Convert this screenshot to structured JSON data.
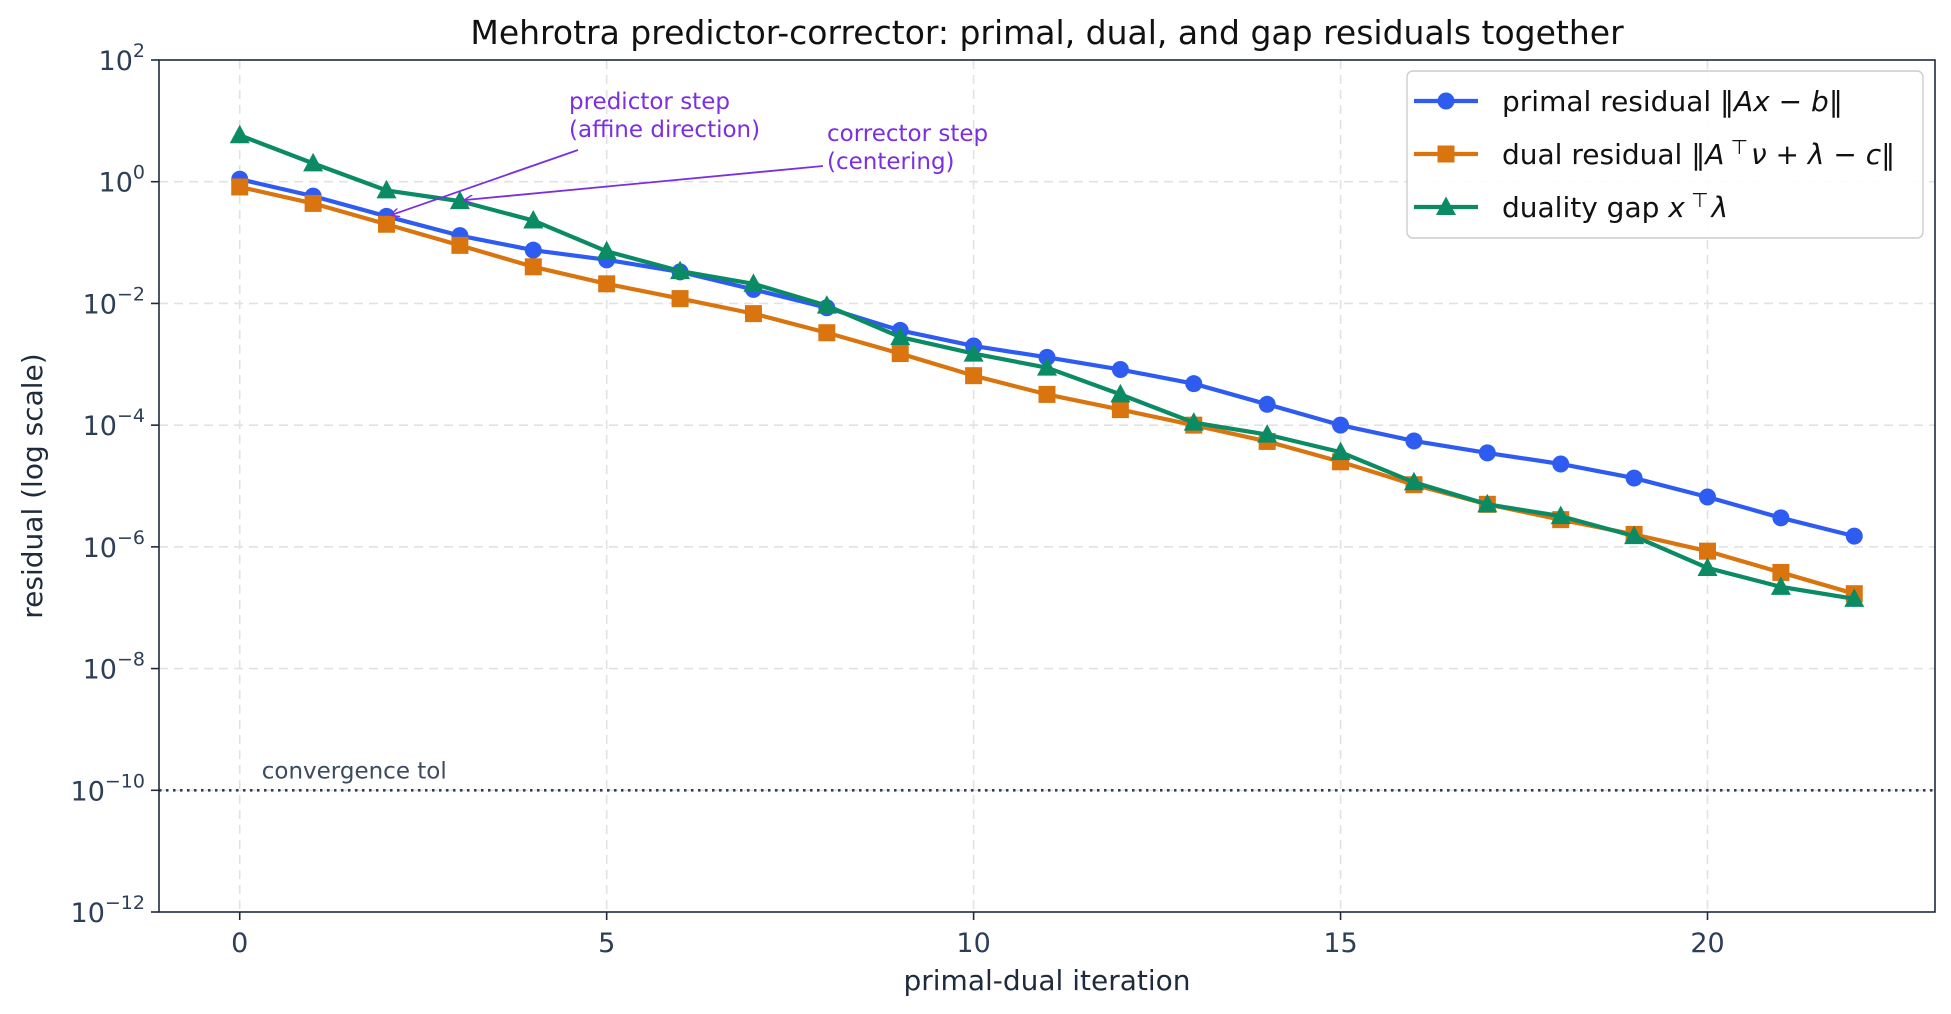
{
  "chart_data": {
    "type": "line",
    "title": "Mehrotra predictor-corrector: primal, dual, and gap residuals together",
    "xlabel": "primal-dual iteration",
    "ylabel": "residual (log scale)",
    "y_scale": "log",
    "xlim": [
      -1.1,
      23.1
    ],
    "ylim_log10": [
      -12,
      2
    ],
    "x_ticks": [
      0,
      5,
      10,
      15,
      20
    ],
    "x_tick_labels": [
      "0",
      "5",
      "10",
      "15",
      "20"
    ],
    "y_ticks_log10": [
      2,
      0,
      -2,
      -4,
      -6,
      -8,
      -10,
      -12
    ],
    "y_tick_labels": [
      {
        "base": "10",
        "exp": "2"
      },
      {
        "base": "10",
        "exp": "0"
      },
      {
        "base": "10",
        "exp": "−2"
      },
      {
        "base": "10",
        "exp": "−4"
      },
      {
        "base": "10",
        "exp": "−6"
      },
      {
        "base": "10",
        "exp": "−8"
      },
      {
        "base": "10",
        "exp": "−10"
      },
      {
        "base": "10",
        "exp": "−12"
      }
    ],
    "grid": true,
    "legend_position": "top-right",
    "x": [
      0,
      1,
      2,
      3,
      4,
      5,
      6,
      7,
      8,
      9,
      10,
      11,
      12,
      13,
      14,
      15,
      16,
      17,
      18,
      19,
      20,
      21,
      22
    ],
    "series": [
      {
        "name": "primal residual ‖Ax − b‖",
        "color": "#2f5cf0",
        "marker": "circle",
        "values": [
          1.1,
          0.58,
          0.27,
          0.13,
          0.075,
          0.052,
          0.033,
          0.017,
          0.0085,
          0.0036,
          0.002,
          0.0013,
          0.00082,
          0.00048,
          0.00022,
          0.0001,
          5.5e-05,
          3.5e-05,
          2.3e-05,
          1.35e-05,
          6.6e-06,
          3e-06,
          1.5e-06
        ]
      },
      {
        "name": "dual residual ‖A⊤ν + λ − c‖",
        "color": "#d9740f",
        "marker": "square",
        "values": [
          0.82,
          0.44,
          0.2,
          0.09,
          0.04,
          0.021,
          0.012,
          0.0068,
          0.0033,
          0.0015,
          0.00065,
          0.00032,
          0.00018,
          0.0001,
          5.4e-05,
          2.5e-05,
          1.05e-05,
          5e-06,
          2.8e-06,
          1.6e-06,
          8.5e-07,
          3.8e-07,
          1.7e-07
        ]
      },
      {
        "name": "duality gap x⊤λ",
        "color": "#0b8b64",
        "marker": "triangle",
        "values": [
          5.8,
          2.0,
          0.72,
          0.48,
          0.23,
          0.072,
          0.034,
          0.021,
          0.0092,
          0.0028,
          0.0015,
          0.00088,
          0.00032,
          0.00011,
          7e-05,
          3.6e-05,
          1.15e-05,
          5e-06,
          3.2e-06,
          1.5e-06,
          4.5e-07,
          2.2e-07,
          1.4e-07
        ]
      }
    ],
    "hline": {
      "y": 1e-10,
      "label": "convergence tol",
      "color": "#2d3e57"
    },
    "annotations": [
      {
        "lines": [
          "predictor step",
          "(affine direction)"
        ],
        "color": "#7b2fe0",
        "target_x": 2,
        "target_series": 0
      },
      {
        "lines": [
          "corrector step",
          "(centering)"
        ],
        "color": "#7b2fe0",
        "target_x": 3,
        "target_series": 2
      }
    ],
    "legend": [
      {
        "segments": [
          {
            "t": "primal residual ‖"
          },
          {
            "t": "Ax",
            "i": true
          },
          {
            "t": " − "
          },
          {
            "t": "b",
            "i": true
          },
          {
            "t": "‖"
          }
        ]
      },
      {
        "segments": [
          {
            "t": "dual residual ‖"
          },
          {
            "t": "A",
            "i": true
          },
          {
            "t": " ⊤",
            "sup": true
          },
          {
            "t": "ν",
            "i": true
          },
          {
            "t": " + "
          },
          {
            "t": "λ",
            "i": true
          },
          {
            "t": " − "
          },
          {
            "t": "c",
            "i": true
          },
          {
            "t": "‖"
          }
        ]
      },
      {
        "segments": [
          {
            "t": "duality gap "
          },
          {
            "t": "x",
            "i": true
          },
          {
            "t": " ⊤",
            "sup": true
          },
          {
            "t": "λ",
            "i": true
          }
        ]
      }
    ]
  }
}
